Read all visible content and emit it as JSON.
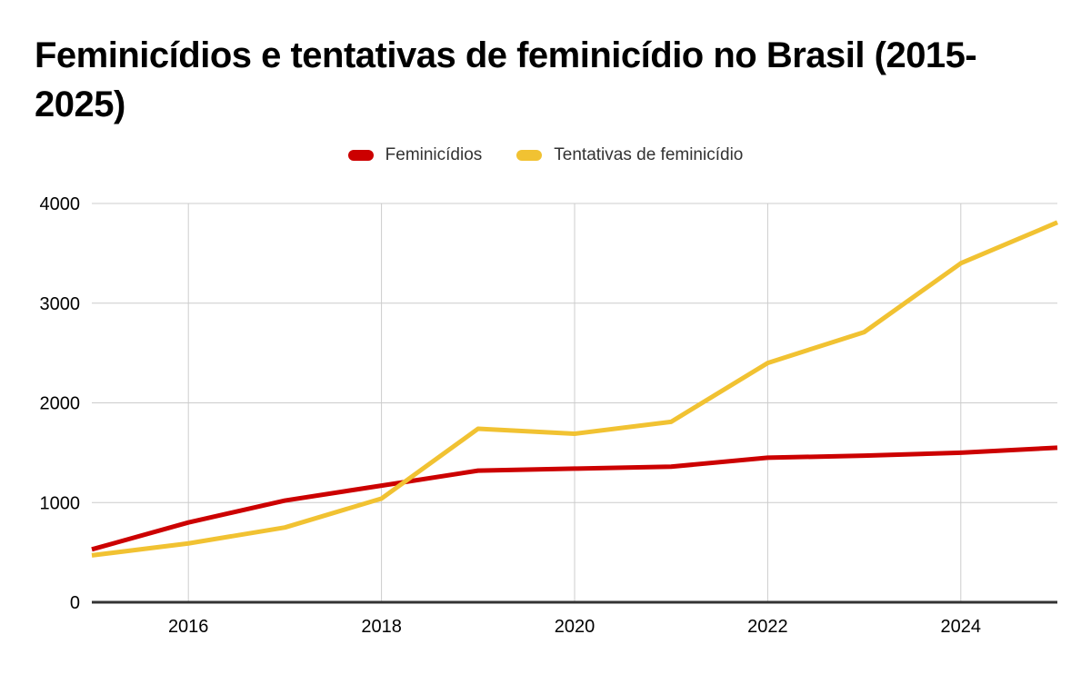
{
  "title": {
    "text": "Feminicídios e tentativas de feminicídio no Brasil (2015-2025)",
    "lines": [
      "Feminicídios e tentativas de feminicídio no Brasil (2015-",
      "2025)"
    ]
  },
  "legend": {
    "items": [
      {
        "label": "Feminicídios",
        "color": "#cc0000"
      },
      {
        "label": "Tentativas de feminicídio",
        "color": "#f1c232"
      }
    ]
  },
  "chart_data": {
    "type": "line",
    "title": "Feminicídios e tentativas de feminicídio no Brasil (2015-2025)",
    "x": [
      2015,
      2016,
      2017,
      2018,
      2019,
      2020,
      2021,
      2022,
      2023,
      2024,
      2025
    ],
    "series": [
      {
        "name": "Feminicídios",
        "color": "#cc0000",
        "values": [
          530,
          800,
          1020,
          1170,
          1320,
          1340,
          1360,
          1450,
          1470,
          1500,
          1550
        ]
      },
      {
        "name": "Tentativas de feminicídio",
        "color": "#f1c232",
        "values": [
          470,
          590,
          750,
          1040,
          1740,
          1690,
          1810,
          2400,
          2710,
          3400,
          3810
        ]
      }
    ],
    "xlabel": "",
    "ylabel": "",
    "xlim": [
      2015,
      2025
    ],
    "ylim": [
      0,
      4000
    ],
    "yticks": [
      0,
      1000,
      2000,
      3000,
      4000
    ],
    "xtick_labels": [
      2016,
      2018,
      2020,
      2022,
      2024
    ],
    "grid": true,
    "legend_position": "top-center",
    "colors": {
      "gridline": "#cccccc",
      "axis_line": "#333333",
      "tick_label": "#000000",
      "background": "#ffffff"
    },
    "line_width": 5
  }
}
